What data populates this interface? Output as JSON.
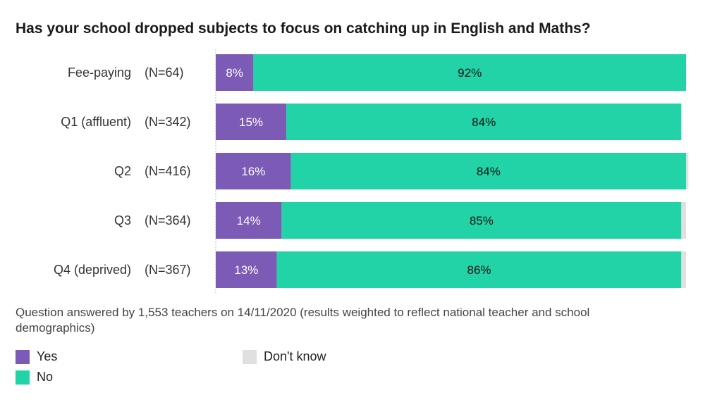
{
  "chart_data": {
    "type": "bar",
    "orientation": "horizontal",
    "stacked": true,
    "title": "Has your school dropped subjects to focus on catching up in English and Maths?",
    "categories": [
      "Fee-paying",
      "Q1 (affluent)",
      "Q2",
      "Q3",
      "Q4 (deprived)"
    ],
    "counts": [
      "(N=64)",
      "(N=342)",
      "(N=416)",
      "(N=364)",
      "(N=367)"
    ],
    "series": [
      {
        "name": "Yes",
        "color": "#7b5bb5",
        "values": [
          8,
          15,
          16,
          14,
          13
        ],
        "labels": [
          "8%",
          "15%",
          "16%",
          "14%",
          "13%"
        ]
      },
      {
        "name": "No",
        "color": "#21d3a6",
        "values": [
          92,
          84,
          84,
          85,
          86
        ],
        "labels": [
          "92%",
          "84%",
          "84%",
          "85%",
          "86%"
        ]
      },
      {
        "name": "Don't know",
        "color": "#e0e0e0",
        "values": [
          0,
          0,
          0.5,
          1,
          1
        ],
        "labels": [
          "",
          "",
          "",
          "",
          ""
        ]
      }
    ],
    "xlim": [
      0,
      100
    ],
    "grid": false,
    "legend_position": "bottom-left",
    "note": "Question answered by 1,553 teachers on 14/11/2020 (results weighted to reflect national teacher and school demographics)"
  }
}
